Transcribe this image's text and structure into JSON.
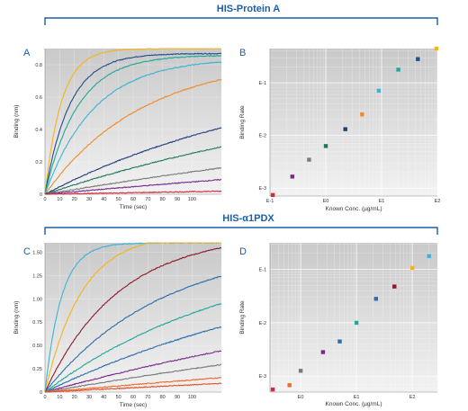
{
  "colors": {
    "accent": "#1a5fa8",
    "series": [
      "#f7b21c",
      "#1f4e8c",
      "#22a79b",
      "#3bb4d8",
      "#f08a2a",
      "#1e3f7a",
      "#1f7a5c",
      "#7a7a7a",
      "#7a2a8c",
      "#d42a3c",
      "#8c1a2a",
      "#2a6fb0",
      "#f06a2a",
      "#e0502a"
    ]
  },
  "sections": [
    {
      "title": "HIS-Protein A"
    },
    {
      "title": "HIS-α1PDX"
    }
  ],
  "panels": [
    {
      "letter": "A"
    },
    {
      "letter": "B"
    },
    {
      "letter": "C"
    },
    {
      "letter": "D"
    }
  ],
  "chart_data": [
    {
      "panel": "A",
      "type": "line",
      "xlabel": "Time (sec)",
      "ylabel": "Binding (nm)",
      "xlim": [
        0,
        120
      ],
      "ylim": [
        0,
        0.9
      ],
      "xticks": [
        "0",
        "10",
        "20",
        "30",
        "40",
        "50",
        "60",
        "70",
        "80",
        "90",
        "100"
      ],
      "yticks": [
        "0",
        "0.2",
        "0.4",
        "0.6",
        "0.8"
      ],
      "grid": true,
      "series": [
        {
          "color": "#f7b21c",
          "plateau": 0.9,
          "rate": 0.09
        },
        {
          "color": "#1f4e8c",
          "plateau": 0.87,
          "rate": 0.06
        },
        {
          "color": "#22a79b",
          "plateau": 0.86,
          "rate": 0.045
        },
        {
          "color": "#3bb4d8",
          "plateau": 0.84,
          "rate": 0.03
        },
        {
          "color": "#f08a2a",
          "plateau": 0.85,
          "rate": 0.015
        },
        {
          "color": "#1e3f7a",
          "plateau": 0.8,
          "rate": 0.006
        },
        {
          "color": "#1f7a5c",
          "plateau": 0.8,
          "rate": 0.0038
        },
        {
          "color": "#7a7a7a",
          "plateau": 0.8,
          "rate": 0.0019
        },
        {
          "color": "#7a2a8c",
          "plateau": 0.8,
          "rate": 0.001
        },
        {
          "color": "#d42a3c",
          "plateau": 0.8,
          "rate": 0.0002
        }
      ]
    },
    {
      "panel": "B",
      "type": "scatter",
      "xlabel": "Known Conc. (µg/mL)",
      "ylabel": "Binding Rate",
      "xlim": [
        -1,
        2
      ],
      "ylim": [
        -3.15,
        -0.35
      ],
      "xticks": [
        "E-1",
        "E0",
        "E1",
        "E2"
      ],
      "yticks": [
        "E-1",
        "E-2",
        "E-3"
      ],
      "log_scale": true,
      "grid": true,
      "points": [
        {
          "x": -0.95,
          "y": -3.13,
          "color": "#d42a3c"
        },
        {
          "x": -0.6,
          "y": -2.78,
          "color": "#7a2a8c"
        },
        {
          "x": -0.3,
          "y": -2.46,
          "color": "#7a7a7a"
        },
        {
          "x": 0.0,
          "y": -2.2,
          "color": "#1f7a5c"
        },
        {
          "x": 0.35,
          "y": -1.88,
          "color": "#1e3f7a"
        },
        {
          "x": 0.65,
          "y": -1.6,
          "color": "#f08a2a"
        },
        {
          "x": 0.95,
          "y": -1.15,
          "color": "#3bb4d8"
        },
        {
          "x": 1.3,
          "y": -0.75,
          "color": "#22a79b"
        },
        {
          "x": 1.65,
          "y": -0.55,
          "color": "#1f4e8c"
        },
        {
          "x": 1.98,
          "y": -0.35,
          "color": "#f7b21c"
        }
      ]
    },
    {
      "panel": "C",
      "type": "line",
      "xlabel": "Time (sec)",
      "ylabel": "Binding (nm)",
      "xlim": [
        0,
        120
      ],
      "ylim": [
        0,
        1.6
      ],
      "xticks": [
        "0",
        "10",
        "20",
        "30",
        "40",
        "50",
        "60",
        "70",
        "80",
        "90",
        "100"
      ],
      "yticks": [
        "0",
        "0.25",
        "0.50",
        "0.75",
        "1.00",
        "1.25",
        "1.50"
      ],
      "grid": true,
      "series": [
        {
          "color": "#3bb4d8",
          "plateau": 1.6,
          "rate": 0.09
        },
        {
          "color": "#f7b21c",
          "plateau": 1.7,
          "rate": 0.04
        },
        {
          "color": "#8c1a2a",
          "plateau": 1.7,
          "rate": 0.02
        },
        {
          "color": "#2a6fb0",
          "plateau": 1.6,
          "rate": 0.0125
        },
        {
          "color": "#22a79b",
          "plateau": 1.6,
          "rate": 0.0075
        },
        {
          "color": "#2a6fb0",
          "plateau": 1.6,
          "rate": 0.0048
        },
        {
          "color": "#7a2a8c",
          "plateau": 1.6,
          "rate": 0.0027
        },
        {
          "color": "#7a7a7a",
          "plateau": 1.6,
          "rate": 0.0017
        },
        {
          "color": "#f06a2a",
          "plateau": 1.6,
          "rate": 0.00085
        },
        {
          "color": "#e0502a",
          "plateau": 1.6,
          "rate": 0.0005
        }
      ]
    },
    {
      "panel": "D",
      "type": "scatter",
      "xlabel": "Known Conc. (µg/mL)",
      "ylabel": "Binding Rate",
      "xlim": [
        -0.55,
        2.45
      ],
      "ylim": [
        -3.3,
        -0.5
      ],
      "xticks": [
        "E0",
        "E1",
        "E2"
      ],
      "yticks": [
        "E-1",
        "E-2",
        "E-3"
      ],
      "log_scale": true,
      "grid": true,
      "points": [
        {
          "x": -0.5,
          "y": -3.25,
          "color": "#d42a3c"
        },
        {
          "x": -0.2,
          "y": -3.17,
          "color": "#f06a2a"
        },
        {
          "x": 0.0,
          "y": -2.9,
          "color": "#7a7a7a"
        },
        {
          "x": 0.4,
          "y": -2.55,
          "color": "#7a2a8c"
        },
        {
          "x": 0.7,
          "y": -2.35,
          "color": "#2a6fb0"
        },
        {
          "x": 1.0,
          "y": -2.0,
          "color": "#22a79b"
        },
        {
          "x": 1.35,
          "y": -1.55,
          "color": "#2a6fb0"
        },
        {
          "x": 1.68,
          "y": -1.32,
          "color": "#8c1a2a"
        },
        {
          "x": 2.0,
          "y": -0.97,
          "color": "#f7b21c"
        },
        {
          "x": 2.3,
          "y": -0.75,
          "color": "#3bb4d8"
        }
      ]
    }
  ]
}
